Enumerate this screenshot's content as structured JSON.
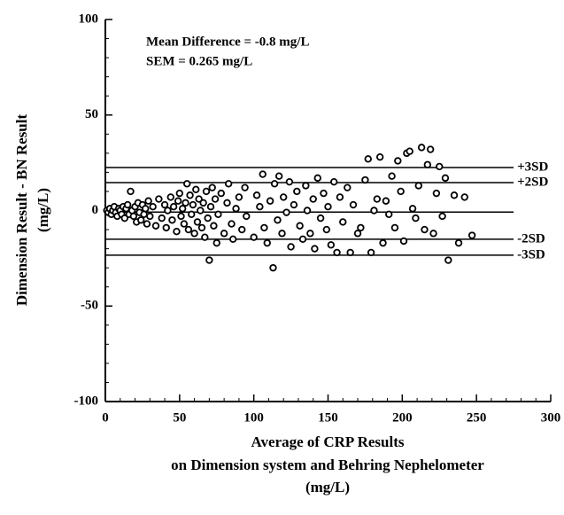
{
  "chart_data": {
    "type": "scatter",
    "ylabel": [
      "Dimension Result - BN Result",
      "(mg/L)"
    ],
    "xlabel": [
      "Average of CRP Results",
      "on Dimension system and Behring Nephelometer",
      "(mg/L)"
    ],
    "annotations": [
      "Mean Difference = -0.8 mg/L",
      "SEM = 0.265 mg/L"
    ],
    "xlim": [
      0,
      300
    ],
    "ylim": [
      -100,
      100
    ],
    "xticks": [
      0,
      50,
      100,
      150,
      200,
      250,
      300
    ],
    "yticks": [
      -100,
      -50,
      0,
      50,
      100
    ],
    "xminorticks": [
      10,
      20,
      30,
      40,
      60,
      70,
      80,
      90,
      110,
      120,
      130,
      140,
      160,
      170,
      180,
      190,
      210,
      220,
      230,
      240,
      260,
      270,
      280,
      290
    ],
    "yminorticks": [
      -90,
      -80,
      -70,
      -60,
      -40,
      -30,
      -20,
      -10,
      10,
      20,
      30,
      40,
      60,
      70,
      80,
      90
    ],
    "ref_lines": [
      {
        "label": "+3SD",
        "value": 22.5,
        "xmax": 275
      },
      {
        "label": "+2SD",
        "value": 14.6,
        "xmax": 275
      },
      {
        "value": -0.8,
        "xmax": 275
      },
      {
        "label": "-2SD",
        "value": -15,
        "xmax": 275
      },
      {
        "label": "-3SD",
        "value": -23.4,
        "xmax": 275
      }
    ],
    "color": "#000000",
    "x": [
      1,
      2,
      3,
      4,
      5,
      6,
      7,
      8,
      9,
      10,
      11,
      12,
      13,
      14,
      15,
      16,
      17,
      18,
      19,
      20,
      21,
      22,
      23,
      24,
      25,
      26,
      27,
      28,
      29,
      30,
      32,
      34,
      36,
      38,
      40,
      41,
      42,
      44,
      45,
      46,
      48,
      49,
      50,
      51,
      52,
      53,
      54,
      55,
      56,
      57,
      58,
      59,
      60,
      61,
      62,
      63,
      64,
      65,
      66,
      67,
      68,
      69,
      70,
      71,
      72,
      73,
      74,
      75,
      76,
      78,
      80,
      82,
      83,
      85,
      86,
      88,
      90,
      92,
      94,
      95,
      100,
      102,
      104,
      106,
      107,
      109,
      111,
      113,
      114,
      116,
      117,
      119,
      120,
      122,
      124,
      125,
      127,
      129,
      131,
      133,
      135,
      136,
      138,
      140,
      141,
      143,
      145,
      147,
      149,
      150,
      152,
      154,
      156,
      158,
      160,
      163,
      165,
      167,
      170,
      172,
      175,
      177,
      179,
      181,
      183,
      185,
      187,
      189,
      191,
      193,
      195,
      197,
      199,
      201,
      203,
      205,
      207,
      209,
      211,
      213,
      215,
      217,
      219,
      221,
      223,
      225,
      227,
      229,
      231,
      235,
      238,
      242,
      247
    ],
    "y": [
      0,
      -1,
      1,
      -2,
      0,
      2,
      -1,
      -3,
      1,
      0,
      -2,
      2,
      -4,
      1,
      3,
      -2,
      10,
      0,
      -3,
      2,
      -6,
      4,
      -1,
      -5,
      3,
      -2,
      1,
      -7,
      5,
      -3,
      2,
      -8,
      6,
      -4,
      3,
      -9,
      0,
      7,
      -5,
      2,
      -11,
      5,
      9,
      -3,
      1,
      -7,
      4,
      14,
      -10,
      8,
      -2,
      3,
      -12,
      11,
      -6,
      6,
      0,
      -9,
      4,
      -14,
      10,
      -4,
      -26,
      2,
      12,
      -8,
      6,
      -17,
      -2,
      9,
      -12,
      4,
      14,
      -7,
      -15,
      1,
      7,
      -10,
      12,
      -3,
      -14,
      8,
      2,
      19,
      -9,
      -17,
      5,
      -30,
      14,
      -5,
      18,
      -12,
      7,
      -1,
      15,
      -19,
      3,
      10,
      -8,
      -15,
      13,
      0,
      -12,
      6,
      -20,
      17,
      -4,
      9,
      -10,
      2,
      -18,
      15,
      -22,
      7,
      -6,
      12,
      -22,
      3,
      -12,
      -9,
      16,
      27,
      -22,
      0,
      6,
      28,
      -17,
      5,
      -2,
      18,
      -9,
      26,
      10,
      -16,
      30,
      31,
      1,
      -4,
      13,
      33,
      -10,
      24,
      32,
      -12,
      9,
      23,
      -3,
      17,
      -26,
      8,
      -17,
      7,
      -13
    ]
  }
}
